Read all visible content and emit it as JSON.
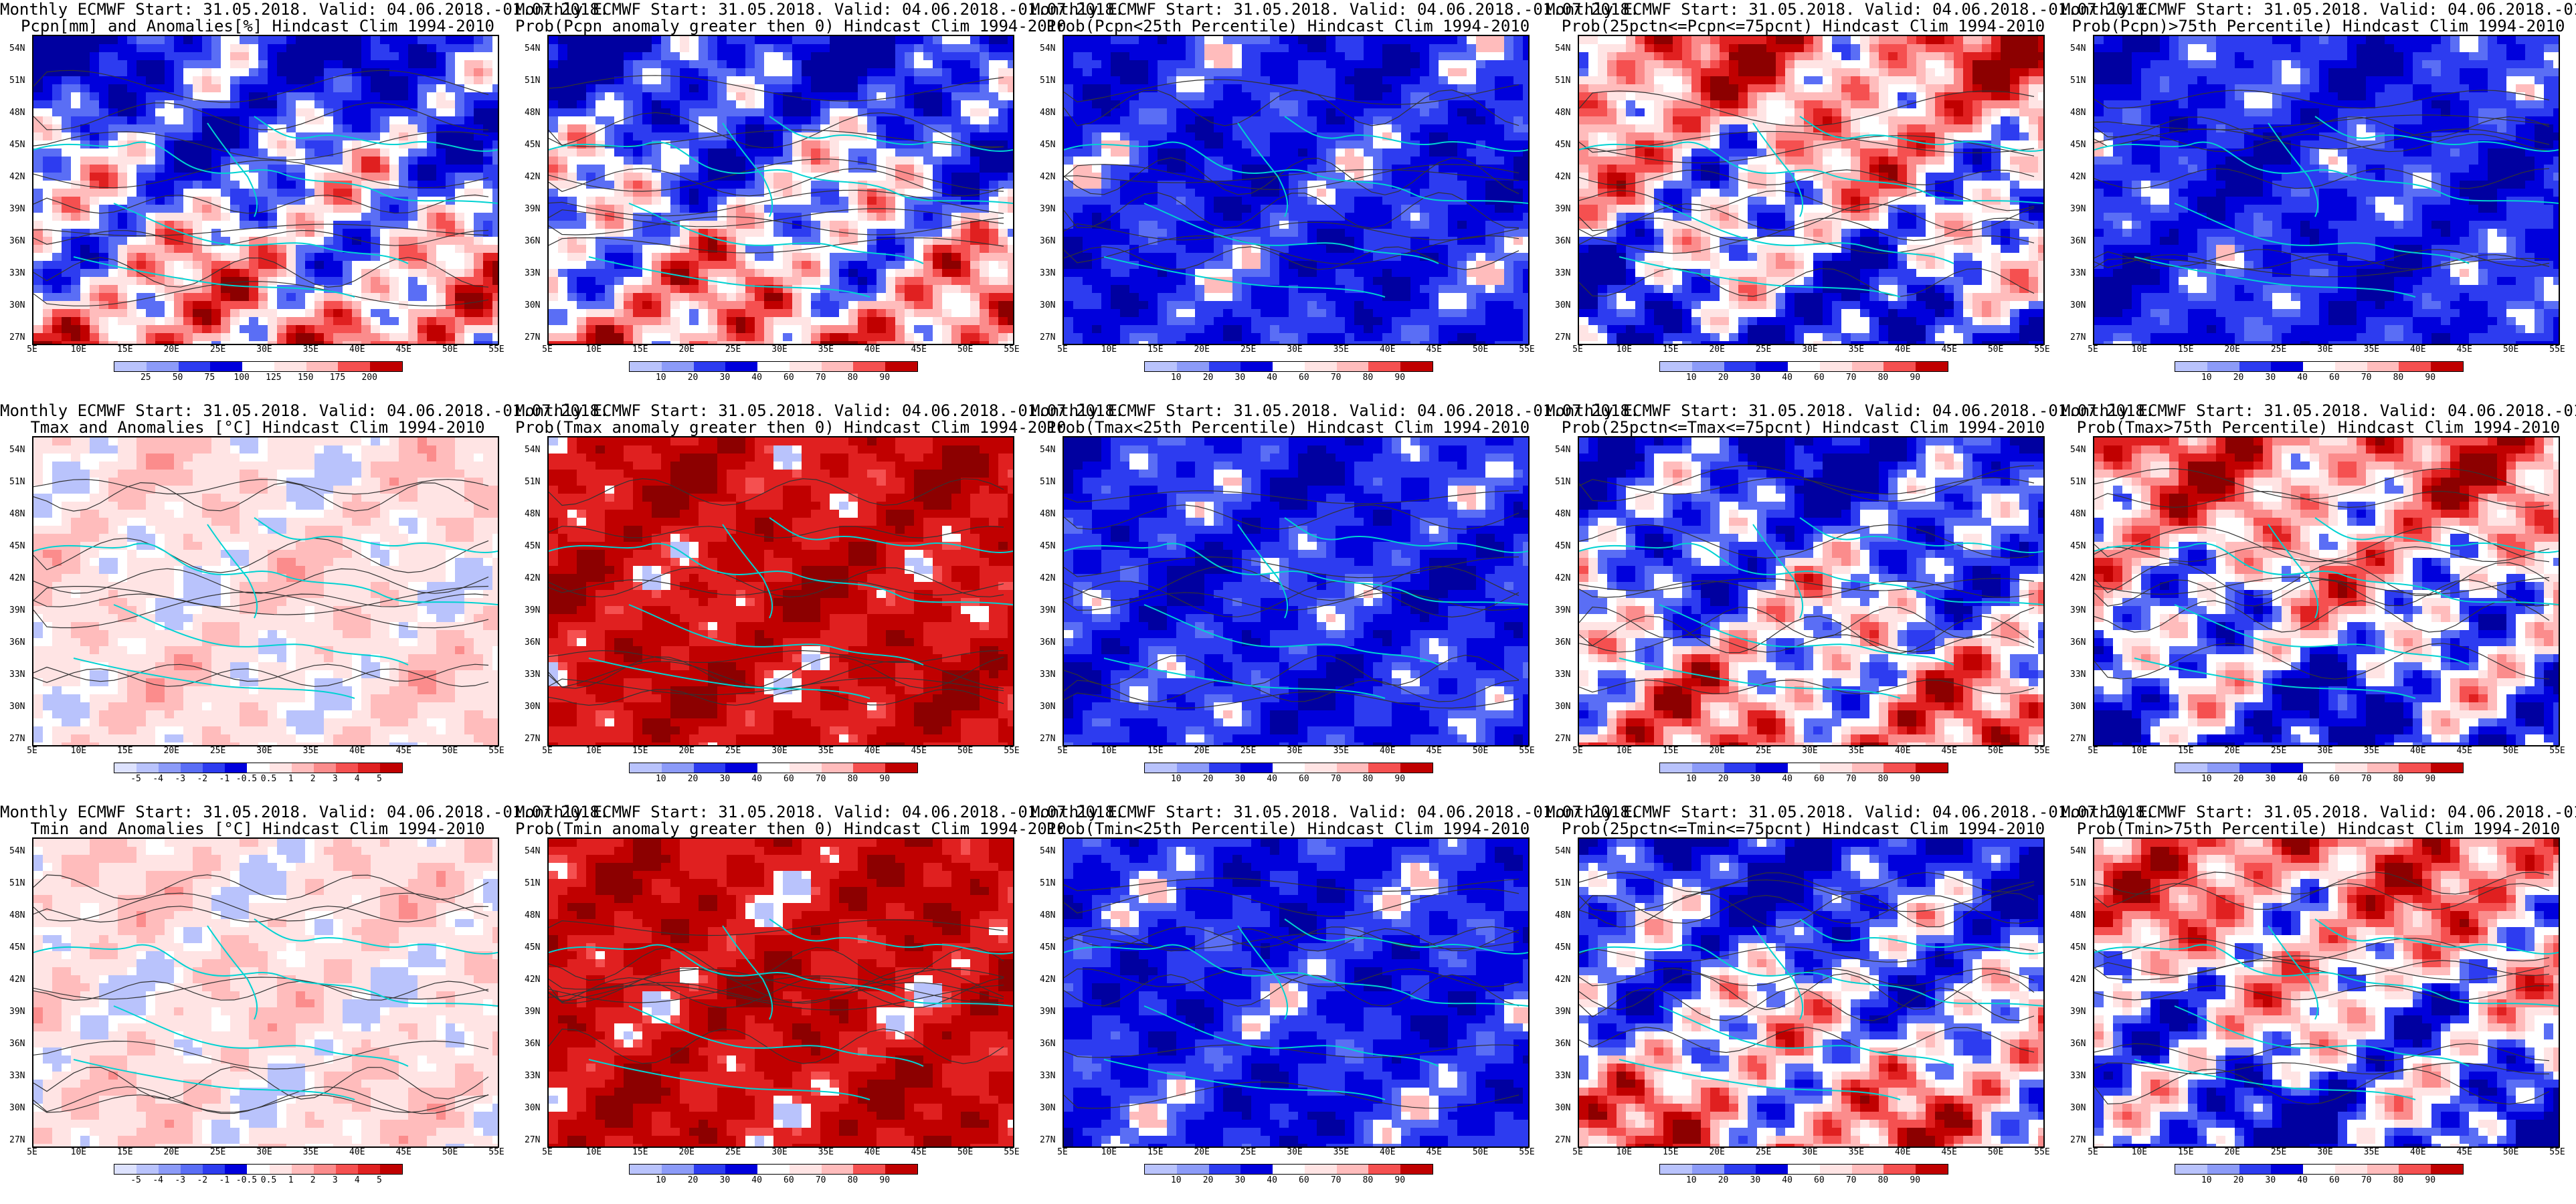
{
  "header_line": "Monthly ECMWF Start: 31.05.2018. Valid: 04.06.2018.-01.07.2018.",
  "lat_labels": [
    "54N",
    "51N",
    "48N",
    "45N",
    "42N",
    "39N",
    "36N",
    "33N",
    "30N",
    "27N"
  ],
  "lon_labels": [
    "5E",
    "10E",
    "15E",
    "20E",
    "25E",
    "30E",
    "35E",
    "40E",
    "45E",
    "50E",
    "55E"
  ],
  "colors": {
    "white": "#ffffff",
    "coast": "#00d2d2",
    "contour": "#333333",
    "blue_scale": [
      "#0000a0",
      "#0000dc",
      "#2d3cf0",
      "#5a6ef5",
      "#8c9bf8",
      "#b9c3fc",
      "#dde2fe"
    ],
    "red_scale": [
      "#ffe4e4",
      "#ffbcbc",
      "#fb8c8c",
      "#f55050",
      "#e02020",
      "#c00000",
      "#8c0000"
    ]
  },
  "panels": [
    {
      "title": "Pcpn[mm] and Anomalies[%] Hindcast Clim 1994-2010",
      "colorbar_ticks": [
        "25",
        "50",
        "75",
        "100",
        "125",
        "150",
        "175",
        "200"
      ]
    },
    {
      "title": "Prob(Pcpn anomaly greater then 0) Hindcast Clim 1994-2010",
      "colorbar_ticks": [
        "10",
        "20",
        "30",
        "40",
        "60",
        "70",
        "80",
        "90"
      ]
    },
    {
      "title": "Prob(Pcpn<25th Percentile) Hindcast Clim 1994-2010",
      "colorbar_ticks": [
        "10",
        "20",
        "30",
        "40",
        "60",
        "70",
        "80",
        "90"
      ]
    },
    {
      "title": "Prob(25pctn<=Pcpn<=75pcnt) Hindcast Clim 1994-2010",
      "colorbar_ticks": [
        "10",
        "20",
        "30",
        "40",
        "60",
        "70",
        "80",
        "90"
      ]
    },
    {
      "title": "Prob(Pcpn)>75th Percentile) Hindcast Clim 1994-2010",
      "colorbar_ticks": [
        "10",
        "20",
        "30",
        "40",
        "60",
        "70",
        "80",
        "90"
      ]
    },
    {
      "title": "Tmax and Anomalies [°C] Hindcast Clim 1994-2010",
      "colorbar_ticks": [
        "-5",
        "-4",
        "-3",
        "-2",
        "-1",
        "-0.5",
        "0.5",
        "1",
        "2",
        "3",
        "4",
        "5"
      ]
    },
    {
      "title": "Prob(Tmax anomaly greater then 0) Hindcast Clim 1994-2010",
      "colorbar_ticks": [
        "10",
        "20",
        "30",
        "40",
        "60",
        "70",
        "80",
        "90"
      ]
    },
    {
      "title": "Prob(Tmax<25th Percentile) Hindcast Clim 1994-2010",
      "colorbar_ticks": [
        "10",
        "20",
        "30",
        "40",
        "60",
        "70",
        "80",
        "90"
      ]
    },
    {
      "title": "Prob(25pctn<=Tmax<=75pcnt) Hindcast Clim 1994-2010",
      "colorbar_ticks": [
        "10",
        "20",
        "30",
        "40",
        "60",
        "70",
        "80",
        "90"
      ]
    },
    {
      "title": "Prob(Tmax>75th Percentile) Hindcast Clim 1994-2010",
      "colorbar_ticks": [
        "10",
        "20",
        "30",
        "40",
        "60",
        "70",
        "80",
        "90"
      ]
    },
    {
      "title": "Tmin and Anomalies [°C] Hindcast Clim 1994-2010",
      "colorbar_ticks": [
        "-5",
        "-4",
        "-3",
        "-2",
        "-1",
        "-0.5",
        "0.5",
        "1",
        "2",
        "3",
        "4",
        "5"
      ]
    },
    {
      "title": "Prob(Tmin anomaly greater then 0) Hindcast Clim 1994-2010",
      "colorbar_ticks": [
        "10",
        "20",
        "30",
        "40",
        "60",
        "70",
        "80",
        "90"
      ]
    },
    {
      "title": "Prob(Tmin<25th Percentile) Hindcast Clim 1994-2010",
      "colorbar_ticks": [
        "10",
        "20",
        "30",
        "40",
        "60",
        "70",
        "80",
        "90"
      ]
    },
    {
      "title": "Prob(25pctn<=Tmin<=75pcnt) Hindcast Clim 1994-2010",
      "colorbar_ticks": [
        "10",
        "20",
        "30",
        "40",
        "60",
        "70",
        "80",
        "90"
      ]
    },
    {
      "title": "Prob(Tmin>75th Percentile) Hindcast Clim 1994-2010",
      "colorbar_ticks": [
        "10",
        "20",
        "30",
        "40",
        "60",
        "70",
        "80",
        "90"
      ]
    }
  ]
}
